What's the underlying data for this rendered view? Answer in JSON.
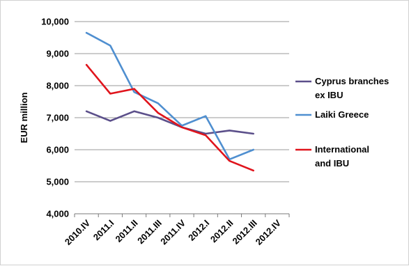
{
  "chart_data": {
    "type": "line",
    "ylabel": "EUR million",
    "xlabel": "",
    "ylim": [
      4000,
      10000
    ],
    "y_ticks": [
      4000,
      5000,
      6000,
      7000,
      8000,
      9000,
      10000
    ],
    "y_tick_labels": [
      "4,000",
      "5,000",
      "6,000",
      "7,000",
      "8,000",
      "9,000",
      "10,000"
    ],
    "categories": [
      "2010.IV",
      "2011.I",
      "2011.II",
      "2011.III",
      "2011.IV",
      "2012.I",
      "2012.II",
      "2012.III",
      "2012.IV"
    ],
    "grid": true,
    "legend_position": "right",
    "series": [
      {
        "name_lines": [
          "Cyprus branches",
          "ex IBU"
        ],
        "color": "#5b4f8a",
        "values": [
          7200,
          6900,
          7200,
          7000,
          6700,
          6500,
          6600,
          6500,
          null
        ]
      },
      {
        "name_lines": [
          "Laiki Greece"
        ],
        "color": "#4f8fd0",
        "values": [
          9650,
          9250,
          7800,
          7450,
          6750,
          7050,
          5700,
          6000,
          null
        ]
      },
      {
        "name_lines": [
          "International",
          "and IBU"
        ],
        "color": "#e0141c",
        "values": [
          8650,
          7750,
          7900,
          7150,
          6700,
          6450,
          5650,
          5350,
          null
        ]
      }
    ]
  }
}
